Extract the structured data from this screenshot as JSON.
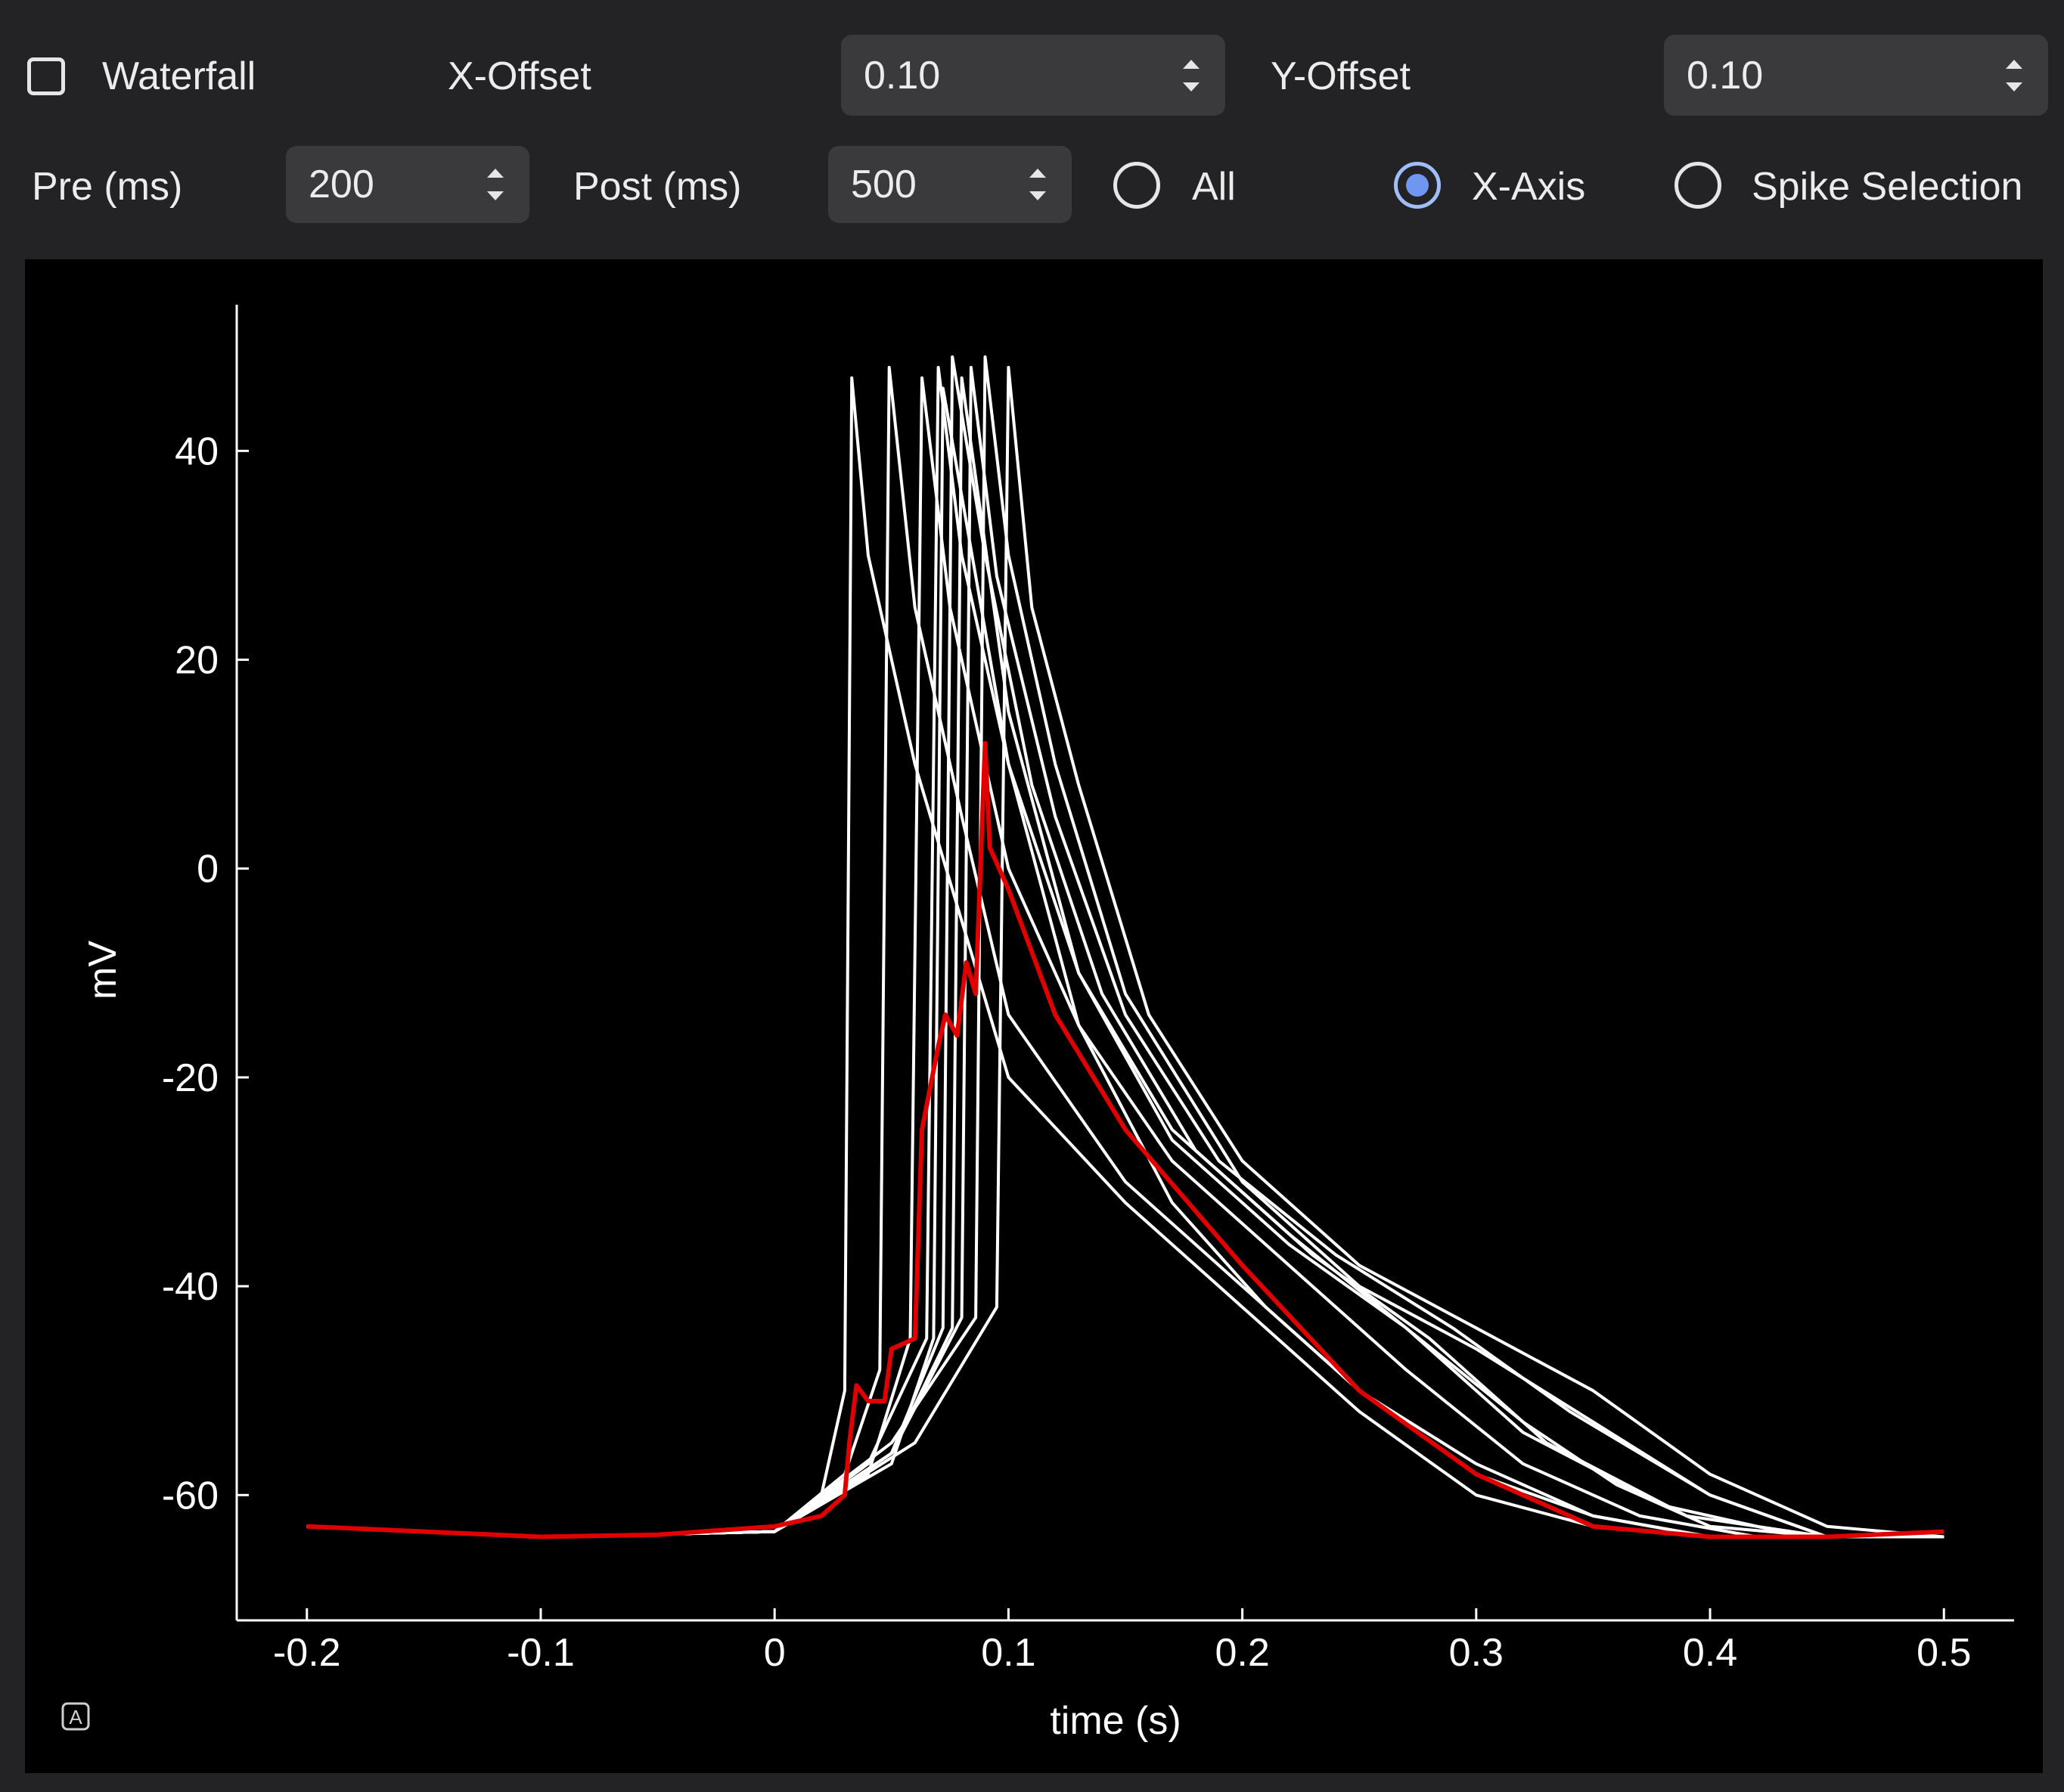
{
  "toolbar": {
    "waterfall_label": "Waterfall",
    "waterfall_checked": false,
    "x_offset_label": "X-Offset",
    "x_offset_value": "0.10",
    "y_offset_label": "Y-Offset",
    "y_offset_value": "0.10",
    "pre_label": "Pre (ms)",
    "pre_value": "200",
    "post_label": "Post (ms)",
    "post_value": "500",
    "radio_options": [
      "All",
      "X-Axis",
      "Spike Selection"
    ],
    "radio_selected": "X-Axis"
  },
  "plot": {
    "auto_range_icon": "auto-range-icon",
    "background": "#000000",
    "trace_color": "#ffffff",
    "average_color": "#e00000"
  },
  "chart_data": {
    "type": "line",
    "title": "",
    "xlabel": "time (s)",
    "ylabel": "mV",
    "xlim": [
      -0.23,
      0.53
    ],
    "ylim": [
      -72,
      54
    ],
    "xticks": [
      -0.2,
      -0.1,
      0,
      0.1,
      0.2,
      0.3,
      0.4,
      0.5
    ],
    "xtick_labels": [
      "-0.2",
      "-0.1",
      "0",
      "0.1",
      "0.2",
      "0.3",
      "0.4",
      "0.5"
    ],
    "yticks": [
      -60,
      -40,
      -20,
      0,
      20,
      40
    ],
    "ytick_labels": [
      "-60",
      "-40",
      "-20",
      "0",
      "20",
      "40"
    ],
    "grid": false,
    "legend": "none",
    "series": [
      {
        "color": "#ffffff",
        "x": [
          -0.2,
          -0.1,
          0.0,
          0.02,
          0.03,
          0.033,
          0.04,
          0.06,
          0.1,
          0.15,
          0.2,
          0.25,
          0.3,
          0.35,
          0.4,
          0.5
        ],
        "y": [
          -63,
          -64,
          -63.5,
          -60,
          -50,
          47,
          30,
          10,
          -20,
          -32,
          -42,
          -52,
          -60,
          -63,
          -64,
          -64
        ]
      },
      {
        "color": "#ffffff",
        "x": [
          -0.2,
          -0.1,
          0.0,
          0.03,
          0.045,
          0.049,
          0.06,
          0.08,
          0.1,
          0.15,
          0.2,
          0.25,
          0.3,
          0.35,
          0.4,
          0.5
        ],
        "y": [
          -63,
          -64,
          -63.5,
          -58,
          -48,
          48,
          25,
          5,
          -14,
          -30,
          -40,
          -50,
          -58,
          -62,
          -64,
          -64
        ]
      },
      {
        "color": "#ffffff",
        "x": [
          -0.2,
          -0.1,
          0.0,
          0.04,
          0.058,
          0.063,
          0.075,
          0.1,
          0.13,
          0.17,
          0.22,
          0.27,
          0.32,
          0.37,
          0.42,
          0.5
        ],
        "y": [
          -63,
          -64,
          -63.5,
          -58,
          -45,
          47,
          25,
          0,
          -15,
          -28,
          -38,
          -48,
          -57,
          -62,
          -64,
          -64
        ]
      },
      {
        "color": "#ffffff",
        "x": [
          -0.2,
          -0.1,
          0.0,
          0.04,
          0.065,
          0.07,
          0.08,
          0.1,
          0.13,
          0.17,
          0.22,
          0.27,
          0.32,
          0.38,
          0.44,
          0.5
        ],
        "y": [
          -63,
          -64,
          -63.5,
          -57,
          -45,
          48,
          30,
          10,
          -10,
          -25,
          -35,
          -44,
          -54,
          -61,
          -64,
          -64
        ]
      },
      {
        "color": "#ffffff",
        "x": [
          -0.2,
          -0.1,
          0.0,
          0.05,
          0.072,
          0.076,
          0.09,
          0.11,
          0.14,
          0.18,
          0.23,
          0.28,
          0.33,
          0.39,
          0.45,
          0.5
        ],
        "y": [
          -63,
          -64,
          -63.5,
          -56,
          -44,
          49,
          30,
          8,
          -12,
          -27,
          -37,
          -45,
          -55,
          -62,
          -64,
          -64
        ]
      },
      {
        "color": "#ffffff",
        "x": [
          -0.2,
          -0.1,
          0.0,
          0.05,
          0.08,
          0.084,
          0.095,
          0.12,
          0.15,
          0.19,
          0.24,
          0.29,
          0.34,
          0.4,
          0.45,
          0.5
        ],
        "y": [
          -63,
          -64,
          -63.5,
          -56,
          -43,
          48,
          28,
          5,
          -14,
          -28,
          -37,
          -44,
          -52,
          -60,
          -64,
          -64
        ]
      },
      {
        "color": "#ffffff",
        "x": [
          -0.2,
          -0.1,
          0.0,
          0.05,
          0.086,
          0.09,
          0.1,
          0.12,
          0.15,
          0.2,
          0.25,
          0.3,
          0.35,
          0.4,
          0.45,
          0.5
        ],
        "y": [
          -63,
          -64,
          -63.5,
          -55,
          -43,
          49,
          30,
          10,
          -12,
          -30,
          -40,
          -46,
          -53,
          -60,
          -64,
          -64
        ]
      },
      {
        "color": "#ffffff",
        "x": [
          -0.2,
          -0.1,
          0.0,
          0.06,
          0.095,
          0.1,
          0.11,
          0.13,
          0.16,
          0.2,
          0.25,
          0.3,
          0.35,
          0.4,
          0.45,
          0.5
        ],
        "y": [
          -63,
          -64,
          -63.5,
          -55,
          -42,
          48,
          25,
          8,
          -14,
          -28,
          -38,
          -44,
          -50,
          -58,
          -63,
          -64
        ]
      },
      {
        "color": "#ffffff",
        "x": [
          -0.2,
          -0.1,
          0.0,
          0.05,
          0.068,
          0.072,
          0.1,
          0.13,
          0.17,
          0.21,
          0.25,
          0.3,
          0.35,
          0.4,
          0.45,
          0.5
        ],
        "y": [
          -63,
          -64,
          -63.5,
          -57,
          -45,
          46,
          10,
          -15,
          -32,
          -42,
          -50,
          -57,
          -62,
          -64,
          -64,
          -64
        ]
      },
      {
        "color": "#ffffff",
        "x": [
          -0.2,
          -0.1,
          0.0,
          0.05,
          0.076,
          0.08,
          0.1,
          0.13,
          0.17,
          0.22,
          0.27,
          0.32,
          0.36,
          0.4,
          0.45,
          0.5
        ],
        "y": [
          -63,
          -64,
          -63.5,
          -56,
          -44,
          47,
          15,
          -10,
          -26,
          -36,
          -44,
          -53,
          -59,
          -63,
          -64,
          -64
        ]
      },
      {
        "color": "#e00000",
        "name": "",
        "x": [
          -0.2,
          -0.15,
          -0.1,
          -0.05,
          0.0,
          0.02,
          0.03,
          0.032,
          0.035,
          0.04,
          0.047,
          0.05,
          0.06,
          0.063,
          0.07,
          0.073,
          0.078,
          0.082,
          0.086,
          0.09,
          0.092,
          0.1,
          0.12,
          0.15,
          0.2,
          0.25,
          0.3,
          0.35,
          0.4,
          0.45,
          0.5
        ],
        "y": [
          -63,
          -63.5,
          -64,
          -63.8,
          -63,
          -62,
          -60,
          -55,
          -49.5,
          -51,
          -51,
          -46,
          -45,
          -25,
          -17,
          -14,
          -16,
          -9,
          -12,
          12,
          2,
          -2,
          -14,
          -25,
          -38,
          -50,
          -58,
          -63,
          -64,
          -64,
          -63.5
        ]
      }
    ]
  }
}
